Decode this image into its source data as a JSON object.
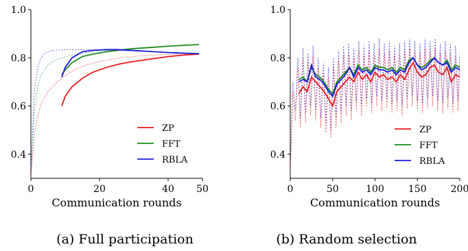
{
  "chart_data": [
    {
      "type": "line",
      "caption": "(a) Full participation",
      "xlabel": "Communication rounds",
      "ylabel": "",
      "xlim": [
        0,
        50
      ],
      "ylim": [
        0.3,
        1.0
      ],
      "xticks": [
        0,
        20,
        40,
        50
      ],
      "yticks": [
        0.4,
        0.6,
        0.8,
        1.0
      ],
      "legend_position": "lower-right",
      "series": [
        {
          "name": "ZP",
          "color": "#e41a1c",
          "x": [
            9,
            10,
            12,
            15,
            18,
            22,
            26,
            30,
            35,
            40,
            45,
            49
          ],
          "y": [
            0.6,
            0.64,
            0.68,
            0.715,
            0.74,
            0.76,
            0.775,
            0.785,
            0.795,
            0.805,
            0.812,
            0.815
          ]
        },
        {
          "name": "FFT",
          "color": "#1a8a1a",
          "x": [
            9,
            10,
            12,
            15,
            18,
            22,
            26,
            30,
            35,
            40,
            45,
            49
          ],
          "y": [
            0.73,
            0.75,
            0.78,
            0.805,
            0.815,
            0.825,
            0.832,
            0.838,
            0.843,
            0.848,
            0.852,
            0.855
          ]
        },
        {
          "name": "RBLA",
          "color": "#1a1adc",
          "x": [
            9,
            10,
            12,
            15,
            18,
            22,
            25,
            30,
            35,
            40,
            45,
            49
          ],
          "y": [
            0.72,
            0.76,
            0.8,
            0.825,
            0.831,
            0.834,
            0.834,
            0.83,
            0.826,
            0.822,
            0.819,
            0.817
          ]
        }
      ],
      "dashed_series": [
        {
          "color": "#e41a1c",
          "x": [
            0,
            1,
            2,
            3,
            5,
            7,
            9,
            12,
            15,
            20,
            25,
            30,
            35,
            40,
            45,
            49
          ],
          "y": [
            0.3,
            0.48,
            0.56,
            0.61,
            0.66,
            0.69,
            0.715,
            0.745,
            0.765,
            0.785,
            0.798,
            0.806,
            0.811,
            0.814,
            0.816,
            0.817
          ]
        },
        {
          "color": "#1a8a1a",
          "x": [
            0,
            1,
            2,
            3,
            5,
            7,
            9,
            12,
            15,
            20,
            25,
            30,
            35,
            40,
            45,
            49
          ],
          "y": [
            0.32,
            0.58,
            0.68,
            0.73,
            0.77,
            0.79,
            0.8,
            0.812,
            0.82,
            0.828,
            0.834,
            0.84,
            0.845,
            0.849,
            0.852,
            0.855
          ]
        },
        {
          "color": "#1a1adc",
          "x": [
            0,
            1,
            2,
            3,
            4,
            6,
            9,
            12,
            15,
            20,
            25,
            30,
            35,
            40,
            45,
            49
          ],
          "y": [
            0.33,
            0.66,
            0.76,
            0.8,
            0.82,
            0.83,
            0.833,
            0.834,
            0.834,
            0.833,
            0.831,
            0.828,
            0.825,
            0.822,
            0.819,
            0.817
          ]
        }
      ]
    },
    {
      "type": "line",
      "caption": "(b) Random selection",
      "xlabel": "Communication rounds",
      "ylabel": "",
      "xlim": [
        0,
        200
      ],
      "ylim": [
        0.3,
        1.0
      ],
      "xticks": [
        0,
        50,
        100,
        150,
        200
      ],
      "yticks": [
        0.4,
        0.6,
        0.8,
        1.0
      ],
      "legend_position": "lower-right",
      "series": [
        {
          "name": "ZP",
          "color": "#e41a1c",
          "x": [
            10,
            15,
            20,
            25,
            30,
            35,
            40,
            45,
            50,
            55,
            60,
            65,
            70,
            75,
            80,
            85,
            90,
            95,
            100,
            105,
            110,
            115,
            120,
            125,
            130,
            135,
            140,
            145,
            150,
            155,
            160,
            165,
            170,
            175,
            180,
            185,
            190,
            195,
            200
          ],
          "y": [
            0.65,
            0.68,
            0.66,
            0.72,
            0.7,
            0.68,
            0.66,
            0.63,
            0.6,
            0.66,
            0.68,
            0.7,
            0.72,
            0.7,
            0.74,
            0.71,
            0.73,
            0.7,
            0.74,
            0.72,
            0.73,
            0.71,
            0.72,
            0.7,
            0.73,
            0.71,
            0.75,
            0.78,
            0.74,
            0.72,
            0.73,
            0.76,
            0.77,
            0.74,
            0.73,
            0.76,
            0.7,
            0.73,
            0.72
          ]
        },
        {
          "name": "FFT",
          "color": "#1a8a1a",
          "x": [
            10,
            15,
            20,
            25,
            30,
            35,
            40,
            45,
            50,
            55,
            60,
            65,
            70,
            75,
            80,
            85,
            90,
            95,
            100,
            105,
            110,
            115,
            120,
            125,
            130,
            135,
            140,
            145,
            150,
            155,
            160,
            165,
            170,
            175,
            180,
            185,
            190,
            195,
            200
          ],
          "y": [
            0.71,
            0.72,
            0.7,
            0.76,
            0.73,
            0.72,
            0.7,
            0.67,
            0.65,
            0.7,
            0.72,
            0.74,
            0.76,
            0.73,
            0.77,
            0.75,
            0.76,
            0.74,
            0.77,
            0.76,
            0.76,
            0.75,
            0.76,
            0.74,
            0.76,
            0.75,
            0.79,
            0.8,
            0.77,
            0.76,
            0.77,
            0.79,
            0.8,
            0.78,
            0.77,
            0.79,
            0.75,
            0.77,
            0.76
          ]
        },
        {
          "name": "RBLA",
          "color": "#1a1adc",
          "x": [
            10,
            15,
            20,
            25,
            30,
            35,
            40,
            45,
            50,
            55,
            60,
            65,
            70,
            75,
            80,
            85,
            90,
            95,
            100,
            105,
            110,
            115,
            120,
            125,
            130,
            135,
            140,
            145,
            150,
            155,
            160,
            165,
            170,
            175,
            180,
            185,
            190,
            195,
            200
          ],
          "y": [
            0.7,
            0.71,
            0.7,
            0.77,
            0.72,
            0.71,
            0.69,
            0.66,
            0.64,
            0.69,
            0.71,
            0.73,
            0.76,
            0.72,
            0.76,
            0.74,
            0.75,
            0.73,
            0.76,
            0.75,
            0.75,
            0.74,
            0.75,
            0.73,
            0.75,
            0.74,
            0.78,
            0.8,
            0.77,
            0.75,
            0.76,
            0.78,
            0.8,
            0.78,
            0.77,
            0.78,
            0.74,
            0.76,
            0.75
          ]
        }
      ],
      "dashed_series": [
        {
          "color": "#1a1adc",
          "x": [
            0,
            3,
            6,
            9,
            12,
            15,
            18,
            21,
            24,
            27,
            30,
            33,
            36,
            39,
            42,
            45,
            48,
            51,
            54,
            57,
            60,
            63,
            66,
            69,
            72,
            75,
            78,
            81,
            84,
            87,
            90,
            93,
            96,
            99,
            102,
            105,
            108,
            111,
            114,
            117,
            120,
            123,
            126,
            129,
            132,
            135,
            138,
            141,
            144,
            147,
            150,
            153,
            156,
            159,
            162,
            165,
            168,
            171,
            174,
            177,
            180,
            183,
            186,
            189,
            192,
            195,
            198,
            200
          ],
          "y": [
            0.33,
            0.7,
            0.58,
            0.8,
            0.55,
            0.84,
            0.57,
            0.82,
            0.6,
            0.85,
            0.58,
            0.8,
            0.55,
            0.78,
            0.53,
            0.76,
            0.5,
            0.8,
            0.55,
            0.83,
            0.57,
            0.85,
            0.6,
            0.86,
            0.58,
            0.84,
            0.62,
            0.87,
            0.6,
            0.85,
            0.63,
            0.87,
            0.61,
            0.86,
            0.64,
            0.88,
            0.62,
            0.86,
            0.63,
            0.87,
            0.61,
            0.85,
            0.62,
            0.86,
            0.6,
            0.87,
            0.63,
            0.88,
            0.64,
            0.87,
            0.62,
            0.86,
            0.61,
            0.88,
            0.63,
            0.87,
            0.64,
            0.88,
            0.62,
            0.86,
            0.61,
            0.87,
            0.63,
            0.86,
            0.61,
            0.85,
            0.62,
            0.82
          ]
        },
        {
          "color": "#e41a1c",
          "x": [
            0,
            3,
            6,
            9,
            12,
            15,
            18,
            21,
            24,
            27,
            30,
            33,
            36,
            39,
            42,
            45,
            48,
            51,
            54,
            57,
            60,
            63,
            66,
            69,
            72,
            75,
            78,
            81,
            84,
            87,
            90,
            93,
            96,
            99,
            102,
            105,
            108,
            111,
            114,
            117,
            120,
            123,
            126,
            129,
            132,
            135,
            138,
            141,
            144,
            147,
            150,
            153,
            156,
            159,
            162,
            165,
            168,
            171,
            174,
            177,
            180,
            183,
            186,
            189,
            192,
            195,
            198,
            200
          ],
          "y": [
            0.32,
            0.66,
            0.54,
            0.76,
            0.51,
            0.8,
            0.53,
            0.78,
            0.56,
            0.81,
            0.54,
            0.76,
            0.51,
            0.74,
            0.49,
            0.72,
            0.47,
            0.76,
            0.51,
            0.79,
            0.53,
            0.81,
            0.56,
            0.82,
            0.54,
            0.8,
            0.58,
            0.83,
            0.56,
            0.81,
            0.59,
            0.83,
            0.57,
            0.82,
            0.6,
            0.84,
            0.58,
            0.82,
            0.59,
            0.83,
            0.57,
            0.81,
            0.58,
            0.82,
            0.56,
            0.83,
            0.59,
            0.84,
            0.6,
            0.83,
            0.58,
            0.82,
            0.57,
            0.84,
            0.59,
            0.83,
            0.6,
            0.84,
            0.58,
            0.82,
            0.57,
            0.83,
            0.59,
            0.82,
            0.57,
            0.81,
            0.58,
            0.78
          ]
        }
      ]
    }
  ]
}
